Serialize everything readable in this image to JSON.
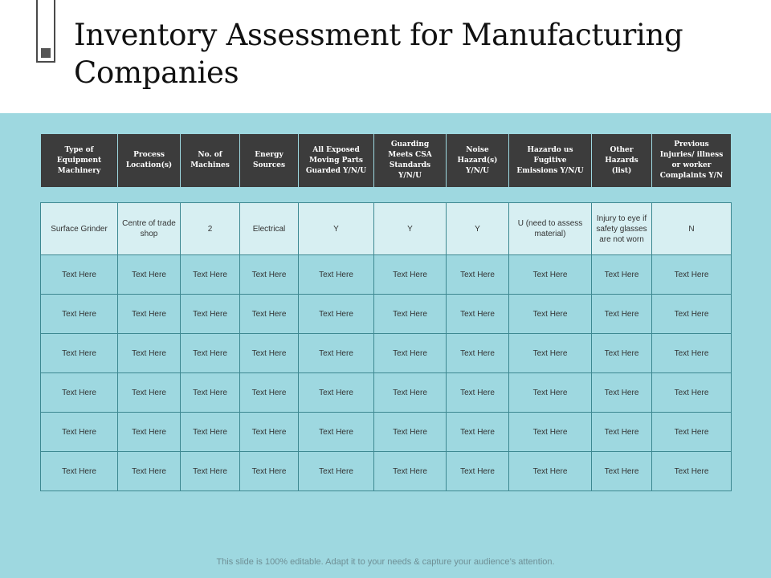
{
  "title": "Inventory Assessment for Manufacturing Companies",
  "table": {
    "headers": [
      "Type of Equipment Machinery",
      "Process Location(s)",
      "No. of Machines",
      "Energy Sources",
      "All Exposed Moving Parts Guarded Y/N/U",
      "Guarding Meets CSA Standards Y/N/U",
      "Noise Hazard(s) Y/N/U",
      "Hazardo us Fugitive Emissions Y/N/U",
      "Other Hazards (list)",
      "Previous Injuries/ illness or worker Complaints Y/N"
    ],
    "rows": [
      [
        "Surface Grinder",
        "Centre of trade shop",
        "2",
        "Electrical",
        "Y",
        "Y",
        "Y",
        "U (need to assess material)",
        "Injury to eye if safety glasses are not worn",
        "N"
      ],
      [
        "Text Here",
        "Text Here",
        "Text Here",
        "Text Here",
        "Text Here",
        "Text Here",
        "Text Here",
        "Text Here",
        "Text Here",
        "Text Here"
      ],
      [
        "Text Here",
        "Text Here",
        "Text Here",
        "Text Here",
        "Text Here",
        "Text Here",
        "Text Here",
        "Text Here",
        "Text Here",
        "Text Here"
      ],
      [
        "Text Here",
        "Text Here",
        "Text Here",
        "Text Here",
        "Text Here",
        "Text Here",
        "Text Here",
        "Text Here",
        "Text Here",
        "Text Here"
      ],
      [
        "Text Here",
        "Text Here",
        "Text Here",
        "Text Here",
        "Text Here",
        "Text Here",
        "Text Here",
        "Text Here",
        "Text Here",
        "Text Here"
      ],
      [
        "Text Here",
        "Text Here",
        "Text Here",
        "Text Here",
        "Text Here",
        "Text Here",
        "Text Here",
        "Text Here",
        "Text Here",
        "Text Here"
      ],
      [
        "Text Here",
        "Text Here",
        "Text Here",
        "Text Here",
        "Text Here",
        "Text Here",
        "Text Here",
        "Text Here",
        "Text Here",
        "Text Here"
      ]
    ]
  },
  "footer": "This slide is 100% editable. Adapt it to your needs & capture your audience’s attention.",
  "colors": {
    "content_background": "#9ed8e0",
    "header_background": "#3c3c3c",
    "first_row_background": "#d7eff2",
    "grid_line": "#3d8891"
  }
}
